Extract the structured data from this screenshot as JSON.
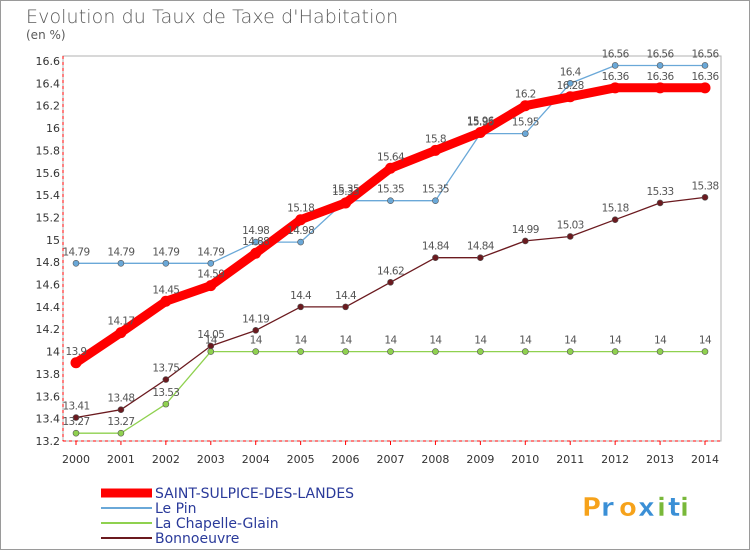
{
  "chart_data": {
    "type": "line",
    "title": "Evolution du Taux de Taxe d'Habitation",
    "ylabel": "(en %)",
    "ylim": [
      13.2,
      16.6
    ],
    "ytick_labels": [
      "13.2",
      "13.4",
      "13.6",
      "13.8",
      "14",
      "14.2",
      "14.4",
      "14.6",
      "14.8",
      "15",
      "15.2",
      "15.4",
      "15.6",
      "15.8",
      "16",
      "16.2",
      "16.4",
      "16.6"
    ],
    "x": [
      "2000",
      "2001",
      "2002",
      "2003",
      "2004",
      "2005",
      "2006",
      "2007",
      "2008",
      "2009",
      "2010",
      "2011",
      "2012",
      "2013",
      "2014"
    ],
    "series": [
      {
        "name": "Bonnoeuvre",
        "color": "#6b1a1f",
        "values": [
          13.41,
          13.48,
          13.75,
          14.05,
          14.19,
          14.4,
          14.4,
          14.62,
          14.84,
          14.84,
          14.99,
          15.03,
          15.18,
          15.33,
          15.38
        ],
        "labels": [
          "13.41",
          "13.48",
          "13.75",
          "14.05",
          "14.19",
          "14.4",
          "14.4",
          "14.62",
          "14.84",
          "14.84",
          "14.99",
          "15.03",
          "15.18",
          "15.33",
          "15.38"
        ]
      },
      {
        "name": "La Chapelle-Glain",
        "color": "#8fd14f",
        "values": [
          13.27,
          13.27,
          13.53,
          14,
          14,
          14,
          14,
          14,
          14,
          14,
          14,
          14,
          14,
          14,
          14
        ],
        "labels": [
          "13.27",
          "13.27",
          "13.53",
          "14",
          "14",
          "14",
          "14",
          "14",
          "14",
          "14",
          "14",
          "14",
          "14",
          "14",
          "14"
        ]
      },
      {
        "name": "Le Pin",
        "color": "#6aa8d8",
        "values": [
          14.79,
          14.79,
          14.79,
          14.79,
          14.98,
          14.98,
          15.35,
          15.35,
          15.35,
          15.95,
          15.95,
          16.4,
          16.56,
          16.56,
          16.56
        ],
        "labels": [
          "14.79",
          "14.79",
          "14.79",
          "14.79",
          "14.98",
          "14.98",
          "15.35",
          "15.35",
          "15.35",
          "15.95",
          "15.95",
          "16.4",
          "16.56",
          "16.56",
          "16.56"
        ]
      },
      {
        "name": "SAINT-SULPICE-DES-LANDES",
        "color": "#ff0000",
        "values": [
          13.9,
          14.17,
          14.45,
          14.59,
          14.88,
          15.18,
          15.33,
          15.64,
          15.8,
          15.96,
          16.2,
          16.28,
          16.36,
          16.36,
          16.36
        ],
        "labels": [
          "13.9",
          "14.17",
          "14.45",
          "14.59",
          "14.88",
          "15.18",
          "15.33",
          "15.64",
          "15.8",
          "15.96",
          "16.2",
          "16.28",
          "16.36",
          "16.36",
          "16.36"
        ]
      }
    ],
    "legend_order": [
      "SAINT-SULPICE-DES-LANDES",
      "Le Pin",
      "La Chapelle-Glain",
      "Bonnoeuvre"
    ],
    "legend_position": "bottom-left",
    "grid": false
  },
  "brand": {
    "letters": [
      "P",
      "r",
      "o",
      "x",
      "i",
      "t",
      "i"
    ],
    "colors": [
      "#f6a21a",
      "#3a8fd6",
      "#f6a21a",
      "#3a8fd6",
      "#79b83a",
      "#3a8fd6",
      "#79b83a"
    ]
  }
}
